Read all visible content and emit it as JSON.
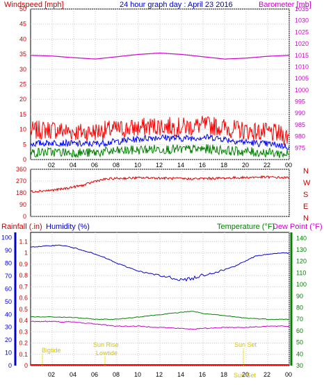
{
  "chart_data": [
    {
      "type": "line",
      "title": "24 hour graph day : April 23 2016",
      "left_axis_label": "Windspeed [mph]",
      "right_axis_label": "Barometer [mb]",
      "x_ticks": [
        "02",
        "04",
        "06",
        "08",
        "10",
        "12",
        "14",
        "16",
        "18",
        "20",
        "22",
        "00"
      ],
      "ylim_left": [
        0,
        50
      ],
      "left_ticks": [
        "0",
        "5",
        "10",
        "15",
        "20",
        "25",
        "30",
        "35",
        "40",
        "45",
        "50"
      ],
      "ylim_right": [
        970,
        1035
      ],
      "right_ticks": [
        "975",
        "980",
        "985",
        "990",
        "995",
        "1000",
        "1005",
        "1010",
        "1015",
        "1020",
        "1025",
        "1030",
        "1035"
      ],
      "colors": {
        "gust": "#ff0000",
        "wind": "#0000ff",
        "avg": "#008000",
        "baro": "#cc00cc",
        "axis_left": "#cc0000",
        "axis_right": "#cc00cc",
        "title": "#0000cc"
      },
      "series": [
        {
          "x": [
            0,
            1,
            2,
            3,
            4,
            5,
            6,
            7,
            8,
            9,
            10,
            11,
            12,
            13,
            14,
            15,
            16,
            17,
            18,
            19,
            20,
            21,
            22,
            23,
            24
          ],
          "values": [
            9.5,
            9.8,
            10,
            9.6,
            9.2,
            9.0,
            9.3,
            9.8,
            10,
            10.3,
            10.5,
            11,
            11.2,
            11,
            10.8,
            11,
            11.4,
            11.2,
            10.6,
            10,
            9.6,
            9.2,
            9,
            8.5,
            7.5
          ]
        },
        {
          "x": [
            0,
            1,
            2,
            3,
            4,
            5,
            6,
            7,
            8,
            9,
            10,
            11,
            12,
            13,
            14,
            15,
            16,
            17,
            18,
            19,
            20,
            21,
            22,
            23,
            24
          ],
          "values": [
            5.2,
            5.4,
            5.6,
            5.5,
            5.3,
            5.1,
            5.3,
            5.6,
            6.0,
            6.4,
            6.8,
            7.2,
            7.4,
            7.2,
            7.0,
            7.2,
            7.4,
            7.3,
            6.8,
            6.2,
            5.8,
            5.4,
            5.2,
            4.8,
            4.2
          ]
        },
        {
          "x": [
            0,
            1,
            2,
            3,
            4,
            5,
            6,
            7,
            8,
            9,
            10,
            11,
            12,
            13,
            14,
            15,
            16,
            17,
            18,
            19,
            20,
            21,
            22,
            23,
            24
          ],
          "values": [
            2.2,
            2.4,
            2.5,
            2.4,
            2.3,
            2.2,
            2.3,
            2.6,
            2.8,
            3,
            3.2,
            3.4,
            3.5,
            3.4,
            3.3,
            3.4,
            3.5,
            3.4,
            3.1,
            2.8,
            2.6,
            2.4,
            2.3,
            2.0,
            1.8
          ]
        },
        {
          "x": [
            0,
            2,
            4,
            6,
            8,
            10,
            12,
            14,
            16,
            18,
            20,
            22,
            24
          ],
          "values": [
            1015,
            1014.7,
            1014,
            1013.4,
            1014.4,
            1015.4,
            1016,
            1015.4,
            1014.4,
            1013.4,
            1013.8,
            1014.6,
            1015
          ]
        }
      ]
    },
    {
      "type": "line",
      "left_ticks": [
        "0",
        "90",
        "180",
        "270",
        "360"
      ],
      "ylim": [
        0,
        360
      ],
      "compass": [
        "N",
        "W",
        "S",
        "E",
        "N"
      ],
      "series": [
        {
          "x": [
            0,
            1,
            2,
            3,
            4,
            5,
            6,
            7,
            8,
            9,
            10,
            11,
            12,
            13,
            14,
            15,
            16,
            17,
            18,
            19,
            20,
            21,
            22,
            23,
            24
          ],
          "values": [
            190,
            195,
            200,
            210,
            225,
            240,
            270,
            285,
            290,
            292,
            294,
            295,
            293,
            290,
            288,
            287,
            289,
            291,
            292,
            295,
            297,
            300,
            300,
            297,
            295
          ]
        }
      ]
    },
    {
      "type": "line",
      "rain_label": "Rainfall (.in)",
      "humidity_label": "Humidity (%)",
      "temp_label": "Temperature (°F)",
      "dew_label": "Dew Point (°F)",
      "left_ticks": [
        "0",
        "10",
        "20",
        "30",
        "40",
        "50",
        "60",
        "70",
        "80",
        "90",
        "100"
      ],
      "rain_ticks": [
        "0",
        "0.1",
        "0.2",
        "0.3",
        "0.4",
        "0.5",
        "0.6",
        "0.7",
        "0.8",
        "0.9",
        "1",
        "1.1"
      ],
      "right_ticks": [
        "30",
        "40",
        "50",
        "60",
        "70",
        "80",
        "90",
        "100",
        "110",
        "120",
        "130",
        "140"
      ],
      "ylim_humidity": [
        0,
        100
      ],
      "ylim_temp": [
        30,
        145
      ],
      "annotations": [
        "Bigtide",
        "Sun Rise",
        "Lowtide",
        "Sun Set",
        "Sun Set"
      ],
      "series": [
        {
          "name": "Humidity",
          "x": [
            0,
            1,
            2,
            3,
            4,
            5,
            6,
            7,
            8,
            9,
            10,
            11,
            12,
            13,
            14,
            15,
            16,
            17,
            18,
            19,
            20,
            21,
            22,
            23,
            24
          ],
          "values": [
            93,
            93,
            94,
            94,
            92,
            90,
            87,
            84,
            80,
            77,
            74,
            72,
            70,
            69,
            67,
            68,
            71,
            73,
            75,
            78,
            82,
            86,
            87,
            88,
            88
          ]
        },
        {
          "name": "Temperature",
          "x": [
            0,
            2,
            4,
            6,
            8,
            10,
            12,
            14,
            15,
            16,
            18,
            20,
            22,
            24
          ],
          "values": [
            72,
            72,
            71.5,
            70,
            70,
            72,
            74,
            76,
            77,
            75,
            73,
            71,
            70,
            70
          ]
        },
        {
          "name": "Dew Point",
          "x": [
            0,
            2,
            4,
            6,
            8,
            10,
            12,
            14,
            15,
            16,
            18,
            20,
            22,
            24
          ],
          "values": [
            68,
            68,
            67.5,
            66,
            64,
            64,
            63,
            62,
            61.5,
            62,
            63,
            63,
            64,
            64
          ]
        },
        {
          "name": "Rainfall",
          "x": [
            0,
            24
          ],
          "values": [
            0,
            0
          ]
        }
      ]
    }
  ]
}
